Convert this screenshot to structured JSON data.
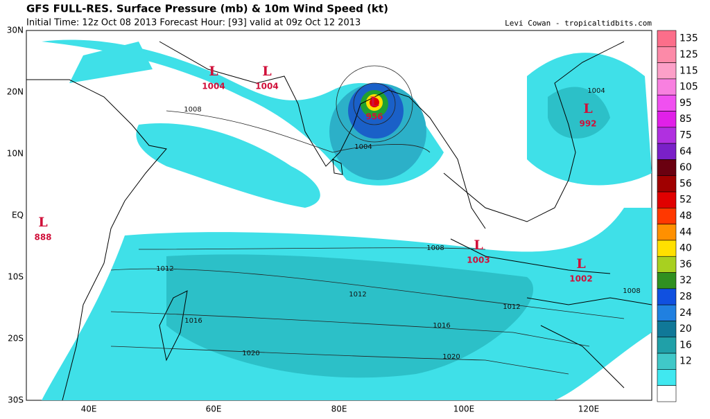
{
  "header": {
    "title": "GFS FULL-RES. Surface Pressure (mb) & 10m Wind Speed (kt)",
    "subtitle": "Initial Time: 12z Oct 08 2013 Forecast Hour: [93] valid at 09z Oct 12 2013",
    "credit": "Levi Cowan - tropicaltidbits.com"
  },
  "map": {
    "lat_labels": [
      "30N",
      "20N",
      "10N",
      "EQ",
      "10S",
      "20S",
      "30S"
    ],
    "lon_labels": [
      "40E",
      "60E",
      "80E",
      "100E",
      "120E"
    ],
    "low_symbol": "L",
    "lows": [
      "1004",
      "1004",
      "956",
      "992",
      "888",
      "1003",
      "1002"
    ],
    "isobar_labels": [
      "1008",
      "1004",
      "1008",
      "1012",
      "1012",
      "1012",
      "1016",
      "1016",
      "1020",
      "1020",
      "1008",
      "1004"
    ]
  },
  "colorbar": {
    "levels": [
      "135",
      "125",
      "115",
      "105",
      "95",
      "85",
      "75",
      "64",
      "60",
      "56",
      "52",
      "48",
      "44",
      "40",
      "36",
      "32",
      "28",
      "24",
      "20",
      "16",
      "12"
    ],
    "colors": [
      "#fc6e8a",
      "#fc8aa8",
      "#fca0c8",
      "#f880e0",
      "#f050f0",
      "#e020e8",
      "#b030e0",
      "#7a20c8",
      "#6a0010",
      "#a00000",
      "#e00000",
      "#ff3800",
      "#ff9000",
      "#ffe000",
      "#a8d020",
      "#309020",
      "#1050e0",
      "#2080e0",
      "#107898",
      "#20a0a8",
      "#40c8c8",
      "#40e8f0",
      "#ffffff"
    ]
  }
}
